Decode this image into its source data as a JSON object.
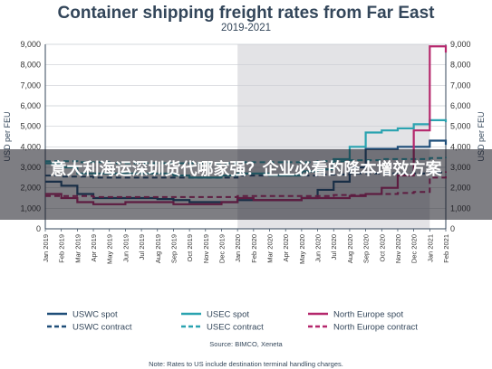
{
  "chart_data": {
    "type": "line",
    "title": "Container shipping freight rates from Far East",
    "subtitle": "2019-2021",
    "ylabel": "USD per FEU",
    "ylim": [
      0,
      9000
    ],
    "yticks": [
      "0",
      "1,000",
      "2,000",
      "3,000",
      "4,000",
      "5,000",
      "6,000",
      "7,000",
      "8,000",
      "9,000"
    ],
    "x": [
      "Jan 2019",
      "Feb 2019",
      "Mar 2019",
      "Apr 2019",
      "May 2019",
      "Jun 2019",
      "Jul 2019",
      "Aug 2019",
      "Sep 2019",
      "Oct 2019",
      "Nov 2019",
      "Dec 2019",
      "Jan 2020",
      "Feb 2020",
      "Mar 2020",
      "Apr 2020",
      "May 2020",
      "Jun 2020",
      "Jul 2020",
      "Aug 2020",
      "Sep 2020",
      "Oct 2020",
      "Nov 2020",
      "Dec 2020",
      "Jan 2021",
      "Feb 2021"
    ],
    "shaded_region": [
      "Jan 2020",
      "Jan 2021"
    ],
    "grid": true,
    "series": [
      {
        "name": "USWC spot",
        "color": "#1f4e79",
        "dash": "solid",
        "values": [
          2300,
          2100,
          1700,
          1500,
          1500,
          1500,
          1500,
          1450,
          1400,
          1300,
          1300,
          1300,
          1400,
          1400,
          1400,
          1400,
          1500,
          1900,
          2300,
          3000,
          3900,
          3900,
          4000,
          4000,
          4300,
          4100
        ]
      },
      {
        "name": "USWC contract",
        "color": "#1f4e79",
        "dash": "dashed",
        "values": [
          2600,
          2550,
          2550,
          2500,
          2500,
          2500,
          2500,
          2500,
          2500,
          2500,
          2500,
          2500,
          2600,
          2600,
          2600,
          2600,
          2600,
          2650,
          2650,
          2700,
          2700,
          2700,
          2700,
          2700,
          2750,
          2800
        ]
      },
      {
        "name": "USEC spot",
        "color": "#2aa3b0",
        "dash": "solid",
        "values": [
          3200,
          3000,
          2700,
          2700,
          2700,
          2700,
          2700,
          2700,
          2600,
          2500,
          2500,
          2600,
          2700,
          2700,
          2600,
          2600,
          2800,
          2900,
          3400,
          4000,
          4700,
          4800,
          4900,
          5100,
          5300,
          5200
        ]
      },
      {
        "name": "USEC contract",
        "color": "#2aa3b0",
        "dash": "dashed",
        "values": [
          3300,
          3300,
          3250,
          3250,
          3200,
          3200,
          3200,
          3200,
          3200,
          3200,
          3200,
          3200,
          3250,
          3250,
          3250,
          3250,
          3250,
          3300,
          3300,
          3350,
          3350,
          3400,
          3400,
          3400,
          3450,
          3500
        ]
      },
      {
        "name": "North Europe spot",
        "color": "#b5276c",
        "dash": "solid",
        "values": [
          1700,
          1500,
          1300,
          1200,
          1200,
          1300,
          1300,
          1300,
          1200,
          1200,
          1200,
          1300,
          1500,
          1400,
          1400,
          1400,
          1500,
          1500,
          1500,
          1600,
          1700,
          2000,
          2600,
          4800,
          8900,
          8600
        ]
      },
      {
        "name": "North Europe contract",
        "color": "#b5276c",
        "dash": "dashed",
        "values": [
          1600,
          1600,
          1600,
          1550,
          1550,
          1550,
          1550,
          1550,
          1550,
          1550,
          1550,
          1550,
          1600,
          1600,
          1600,
          1600,
          1600,
          1600,
          1650,
          1650,
          1700,
          1700,
          1750,
          1800,
          2500,
          2800
        ]
      }
    ]
  },
  "legend": [
    {
      "label": "USWC spot",
      "color": "#1f4e79",
      "dash": "solid"
    },
    {
      "label": "USEC spot",
      "color": "#2aa3b0",
      "dash": "solid"
    },
    {
      "label": "North Europe spot",
      "color": "#b5276c",
      "dash": "solid"
    },
    {
      "label": "USWC contract",
      "color": "#1f4e79",
      "dash": "dashed"
    },
    {
      "label": "USEC contract",
      "color": "#2aa3b0",
      "dash": "dashed"
    },
    {
      "label": "North Europe contract",
      "color": "#b5276c",
      "dash": "dashed"
    }
  ],
  "source": "Source: BIMCO, Xeneta",
  "note": "Note: Rates to US include destination terminal handling charges.",
  "overlay_text": "意大利海运深圳货代哪家强？企业必看的降本增效方案"
}
